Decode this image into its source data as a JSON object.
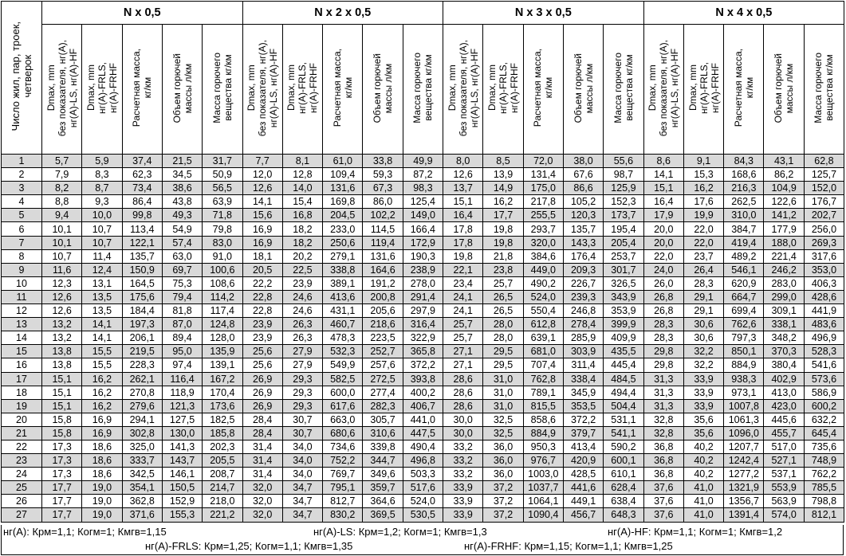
{
  "row_header": "Число жил, пар, троек,\nчетверок",
  "groups": [
    "N x 0,5",
    "N x 2 x 0,5",
    "N x 3 x 0,5",
    "N x 4 x 0,5"
  ],
  "column_headers": [
    "Dmax, mm\nбез показателя, нг(A),\nнг(A)-LS, нг(A)-HF",
    "Dmax, mm\nнг(A)-FRLS,\nнг(A)-FRHF",
    "Расчетная масса,\nкг/км",
    "Объем горючей\nмассы л/км",
    "Масса горючего\nвещества кг/км"
  ],
  "row_shade_color": "#d9d9d9",
  "rows": [
    {
      "n": "1",
      "v": [
        "5,7",
        "5,9",
        "37,4",
        "21,5",
        "31,7",
        "7,7",
        "8,1",
        "61,0",
        "33,8",
        "49,9",
        "8,0",
        "8,5",
        "72,0",
        "38,0",
        "55,6",
        "8,6",
        "9,1",
        "84,3",
        "43,1",
        "62,8"
      ]
    },
    {
      "n": "2",
      "v": [
        "7,9",
        "8,3",
        "62,3",
        "34,5",
        "50,9",
        "12,0",
        "12,8",
        "109,4",
        "59,3",
        "87,2",
        "12,6",
        "13,9",
        "131,4",
        "67,6",
        "98,7",
        "14,1",
        "15,3",
        "168,6",
        "86,2",
        "125,7"
      ]
    },
    {
      "n": "3",
      "v": [
        "8,2",
        "8,7",
        "73,4",
        "38,6",
        "56,5",
        "12,6",
        "14,0",
        "131,6",
        "67,3",
        "98,3",
        "13,7",
        "14,9",
        "175,0",
        "86,6",
        "125,9",
        "15,1",
        "16,2",
        "216,3",
        "104,9",
        "152,0"
      ]
    },
    {
      "n": "4",
      "v": [
        "8,8",
        "9,3",
        "86,4",
        "43,8",
        "63,9",
        "14,1",
        "15,4",
        "169,8",
        "86,0",
        "125,4",
        "15,1",
        "16,2",
        "217,8",
        "105,2",
        "152,3",
        "16,4",
        "17,6",
        "262,5",
        "122,6",
        "176,7"
      ]
    },
    {
      "n": "5",
      "v": [
        "9,4",
        "10,0",
        "99,8",
        "49,3",
        "71,8",
        "15,6",
        "16,8",
        "204,5",
        "102,2",
        "149,0",
        "16,4",
        "17,7",
        "255,5",
        "120,3",
        "173,7",
        "17,9",
        "19,9",
        "310,0",
        "141,2",
        "202,7"
      ]
    },
    {
      "n": "6",
      "v": [
        "10,1",
        "10,7",
        "113,4",
        "54,9",
        "79,8",
        "16,9",
        "18,2",
        "233,0",
        "114,5",
        "166,4",
        "17,8",
        "19,8",
        "293,7",
        "135,7",
        "195,4",
        "20,0",
        "22,0",
        "384,7",
        "177,9",
        "256,0"
      ]
    },
    {
      "n": "7",
      "v": [
        "10,1",
        "10,7",
        "122,1",
        "57,4",
        "83,0",
        "16,9",
        "18,2",
        "250,6",
        "119,4",
        "172,9",
        "17,8",
        "19,8",
        "320,0",
        "143,3",
        "205,4",
        "20,0",
        "22,0",
        "419,4",
        "188,0",
        "269,3"
      ]
    },
    {
      "n": "8",
      "v": [
        "10,7",
        "11,4",
        "135,7",
        "63,0",
        "91,0",
        "18,1",
        "20,2",
        "279,1",
        "131,6",
        "190,3",
        "19,8",
        "21,8",
        "384,6",
        "176,4",
        "253,7",
        "22,0",
        "23,7",
        "489,2",
        "221,4",
        "317,6"
      ]
    },
    {
      "n": "9",
      "v": [
        "11,6",
        "12,4",
        "150,9",
        "69,7",
        "100,6",
        "20,5",
        "22,5",
        "338,8",
        "164,6",
        "238,9",
        "22,1",
        "23,8",
        "449,0",
        "209,3",
        "301,7",
        "24,0",
        "26,4",
        "546,1",
        "246,2",
        "353,0"
      ]
    },
    {
      "n": "10",
      "v": [
        "12,3",
        "13,1",
        "164,5",
        "75,3",
        "108,6",
        "22,2",
        "23,9",
        "389,1",
        "191,2",
        "278,0",
        "23,4",
        "25,7",
        "490,2",
        "226,7",
        "326,5",
        "26,0",
        "28,3",
        "620,9",
        "283,0",
        "406,3"
      ]
    },
    {
      "n": "11",
      "v": [
        "12,6",
        "13,5",
        "175,6",
        "79,4",
        "114,2",
        "22,8",
        "24,6",
        "413,6",
        "200,8",
        "291,4",
        "24,1",
        "26,5",
        "524,0",
        "239,3",
        "343,9",
        "26,8",
        "29,1",
        "664,7",
        "299,0",
        "428,6"
      ]
    },
    {
      "n": "12",
      "v": [
        "12,6",
        "13,5",
        "184,4",
        "81,8",
        "117,4",
        "22,8",
        "24,6",
        "431,1",
        "205,6",
        "297,9",
        "24,1",
        "26,5",
        "550,4",
        "246,8",
        "353,9",
        "26,8",
        "29,1",
        "699,4",
        "309,1",
        "441,9"
      ]
    },
    {
      "n": "13",
      "v": [
        "13,2",
        "14,1",
        "197,3",
        "87,0",
        "124,8",
        "23,9",
        "26,3",
        "460,7",
        "218,6",
        "316,4",
        "25,7",
        "28,0",
        "612,8",
        "278,4",
        "399,9",
        "28,3",
        "30,6",
        "762,6",
        "338,1",
        "483,6"
      ]
    },
    {
      "n": "14",
      "v": [
        "13,2",
        "14,1",
        "206,1",
        "89,4",
        "128,0",
        "23,9",
        "26,3",
        "478,3",
        "223,5",
        "322,9",
        "25,7",
        "28,0",
        "639,1",
        "285,9",
        "409,9",
        "28,3",
        "30,6",
        "797,3",
        "348,2",
        "496,9"
      ]
    },
    {
      "n": "15",
      "v": [
        "13,8",
        "15,5",
        "219,5",
        "95,0",
        "135,9",
        "25,6",
        "27,9",
        "532,3",
        "252,7",
        "365,8",
        "27,1",
        "29,5",
        "681,0",
        "303,9",
        "435,5",
        "29,8",
        "32,2",
        "850,1",
        "370,3",
        "528,3"
      ]
    },
    {
      "n": "16",
      "v": [
        "13,8",
        "15,5",
        "228,3",
        "97,4",
        "139,1",
        "25,6",
        "27,9",
        "549,9",
        "257,6",
        "372,2",
        "27,1",
        "29,5",
        "707,4",
        "311,4",
        "445,4",
        "29,8",
        "32,2",
        "884,9",
        "380,4",
        "541,6"
      ]
    },
    {
      "n": "17",
      "v": [
        "15,1",
        "16,2",
        "262,1",
        "116,4",
        "167,2",
        "26,9",
        "29,3",
        "582,5",
        "272,5",
        "393,8",
        "28,6",
        "31,0",
        "762,8",
        "338,4",
        "484,5",
        "31,3",
        "33,9",
        "938,3",
        "402,9",
        "573,6"
      ]
    },
    {
      "n": "18",
      "v": [
        "15,1",
        "16,2",
        "270,8",
        "118,9",
        "170,4",
        "26,9",
        "29,3",
        "600,0",
        "277,4",
        "400,2",
        "28,6",
        "31,0",
        "789,1",
        "345,9",
        "494,4",
        "31,3",
        "33,9",
        "973,1",
        "413,0",
        "586,9"
      ]
    },
    {
      "n": "19",
      "v": [
        "15,1",
        "16,2",
        "279,6",
        "121,3",
        "173,6",
        "26,9",
        "29,3",
        "617,6",
        "282,3",
        "406,7",
        "28,6",
        "31,0",
        "815,5",
        "353,5",
        "504,4",
        "31,3",
        "33,9",
        "1007,8",
        "423,0",
        "600,2"
      ]
    },
    {
      "n": "20",
      "v": [
        "15,8",
        "16,9",
        "294,1",
        "127,5",
        "182,5",
        "28,4",
        "30,7",
        "663,0",
        "305,7",
        "441,0",
        "30,0",
        "32,5",
        "858,6",
        "372,2",
        "531,1",
        "32,8",
        "35,6",
        "1061,3",
        "445,6",
        "632,2"
      ]
    },
    {
      "n": "21",
      "v": [
        "15,8",
        "16,9",
        "302,8",
        "130,0",
        "185,8",
        "28,4",
        "30,7",
        "680,6",
        "310,6",
        "447,5",
        "30,0",
        "32,5",
        "884,9",
        "379,7",
        "541,1",
        "32,8",
        "35,6",
        "1096,0",
        "455,7",
        "645,4"
      ]
    },
    {
      "n": "22",
      "v": [
        "17,3",
        "18,6",
        "325,0",
        "141,3",
        "202,3",
        "31,4",
        "34,0",
        "734,6",
        "339,8",
        "490,4",
        "33,2",
        "36,0",
        "950,3",
        "413,4",
        "590,2",
        "36,8",
        "40,2",
        "1207,7",
        "517,0",
        "735,6"
      ]
    },
    {
      "n": "23",
      "v": [
        "17,3",
        "18,6",
        "333,7",
        "143,7",
        "205,5",
        "31,4",
        "34,0",
        "752,2",
        "344,7",
        "496,8",
        "33,2",
        "36,0",
        "976,7",
        "420,9",
        "600,1",
        "36,8",
        "40,2",
        "1242,4",
        "527,1",
        "748,9"
      ]
    },
    {
      "n": "24",
      "v": [
        "17,3",
        "18,6",
        "342,5",
        "146,1",
        "208,7",
        "31,4",
        "34,0",
        "769,7",
        "349,6",
        "503,3",
        "33,2",
        "36,0",
        "1003,0",
        "428,5",
        "610,1",
        "36,8",
        "40,2",
        "1277,2",
        "537,1",
        "762,2"
      ]
    },
    {
      "n": "25",
      "v": [
        "17,7",
        "19,0",
        "354,1",
        "150,5",
        "214,7",
        "32,0",
        "34,7",
        "795,1",
        "359,7",
        "517,6",
        "33,9",
        "37,2",
        "1037,7",
        "441,6",
        "628,4",
        "37,6",
        "41,0",
        "1321,9",
        "553,9",
        "785,5"
      ]
    },
    {
      "n": "26",
      "v": [
        "17,7",
        "19,0",
        "362,8",
        "152,9",
        "218,0",
        "32,0",
        "34,7",
        "812,7",
        "364,6",
        "524,0",
        "33,9",
        "37,2",
        "1064,1",
        "449,1",
        "638,4",
        "37,6",
        "41,0",
        "1356,7",
        "563,9",
        "798,8"
      ]
    },
    {
      "n": "27",
      "v": [
        "17,7",
        "19,0",
        "371,6",
        "155,3",
        "221,2",
        "32,0",
        "34,7",
        "830,2",
        "369,5",
        "530,5",
        "33,9",
        "37,2",
        "1090,4",
        "456,7",
        "648,3",
        "37,6",
        "41,0",
        "1391,4",
        "574,0",
        "812,1"
      ]
    }
  ],
  "footer": {
    "ng_a": "нг(A): Крм=1,1;  Когм=1;  Кмгв=1,15",
    "ng_a_ls": "нг(A)-LS: Крм=1,2;  Когм=1;  Кмгв=1,3",
    "ng_a_hf": "нг(A)-HF: Крм=1,1;  Когм=1;  Кмгв=1,2",
    "ng_a_frls": "нг(A)-FRLS: Крм=1,25;  Когм=1,1;  Кмгв=1,35",
    "ng_a_frhf": "нг(A)-FRHF: Крм=1,15;  Когм=1,1;  Кмгв=1,25"
  }
}
